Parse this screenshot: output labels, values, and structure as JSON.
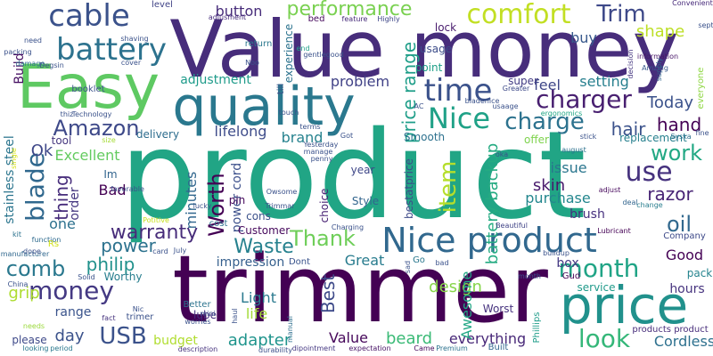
{
  "words": [
    {
      "text": "product",
      "color": "#21a585"
    },
    {
      "text": "trimmer",
      "color": "#440154"
    },
    {
      "text": "Value money",
      "color": "#472d7b"
    },
    {
      "text": "Easy",
      "color": "#5ec962"
    },
    {
      "text": "quality",
      "color": "#2a788e"
    },
    {
      "text": "price",
      "color": "#21918c"
    },
    {
      "text": "Nice product",
      "color": "#31688e"
    },
    {
      "text": "battery",
      "color": "#2c728e"
    },
    {
      "text": "cable",
      "color": "#3b528b"
    },
    {
      "text": "comfort",
      "color": "#c2df23"
    },
    {
      "text": "performance",
      "color": "#7ad151"
    },
    {
      "text": "time",
      "color": "#3b528b"
    },
    {
      "text": "Nice",
      "color": "#1fa187"
    },
    {
      "text": "charger",
      "color": "#481f70"
    },
    {
      "text": "charge",
      "color": "#2c728e"
    },
    {
      "text": "Trim",
      "color": "#3e4989"
    },
    {
      "text": "blade",
      "color": "#30688e"
    },
    {
      "text": "money",
      "color": "#443983"
    },
    {
      "text": "comb",
      "color": "#2a788e"
    },
    {
      "text": "use",
      "color": "#46327e"
    },
    {
      "text": "work",
      "color": "#22a884"
    },
    {
      "text": "month",
      "color": "#20a486"
    },
    {
      "text": "look",
      "color": "#35b779"
    },
    {
      "text": "Amazon",
      "color": "#3e4989"
    },
    {
      "text": "Worth",
      "color": "#440154"
    },
    {
      "text": "warranty",
      "color": "#472c7a"
    },
    {
      "text": "USB",
      "color": "#3b528b"
    },
    {
      "text": "philip",
      "color": "#21918c"
    },
    {
      "text": "item",
      "color": "#b5de2b"
    },
    {
      "text": "price range",
      "color": "#1f9e89"
    },
    {
      "text": "battery backup",
      "color": "#25ab82"
    },
    {
      "text": "hair",
      "color": "#3b528b"
    },
    {
      "text": "hand",
      "color": "#440154"
    },
    {
      "text": "oil",
      "color": "#31688e"
    },
    {
      "text": "razor",
      "color": "#482475"
    },
    {
      "text": "skin",
      "color": "#481a6c"
    },
    {
      "text": "power",
      "color": "#2c728e"
    },
    {
      "text": "Thank",
      "color": "#6ece58"
    },
    {
      "text": "Waste",
      "color": "#26818e"
    },
    {
      "text": "Best",
      "color": "#3e4a89"
    },
    {
      "text": "adapter",
      "color": "#1f948c"
    },
    {
      "text": "beard",
      "color": "#3aba76"
    },
    {
      "text": "everything",
      "color": "#482878"
    },
    {
      "text": "Cordless",
      "color": "#2d708e"
    },
    {
      "text": "hours",
      "color": "#46337e"
    },
    {
      "text": "Good",
      "color": "#440154"
    },
    {
      "text": "grip",
      "color": "#addc30"
    },
    {
      "text": "life",
      "color": "#a2da37"
    },
    {
      "text": "Light",
      "color": "#29798e"
    },
    {
      "text": "day",
      "color": "#3b528b"
    },
    {
      "text": "Value",
      "color": "#46075a"
    },
    {
      "text": "Great",
      "color": "#287c8e"
    },
    {
      "text": "design",
      "color": "#86d549"
    },
    {
      "text": "Excellent",
      "color": "#63cb5f"
    },
    {
      "text": "Build",
      "color": "#471063"
    },
    {
      "text": "button",
      "color": "#472c7a"
    },
    {
      "text": "lifelong",
      "color": "#3e4c8a"
    },
    {
      "text": "adjustment",
      "color": "#1e9b8a"
    },
    {
      "text": "problem",
      "color": "#414287"
    },
    {
      "text": "setting",
      "color": "#277f8e"
    },
    {
      "text": "feel",
      "color": "#3f4788"
    },
    {
      "text": "Today",
      "color": "#3b528b"
    },
    {
      "text": "shape",
      "color": "#bddf26"
    },
    {
      "text": "buy",
      "color": "#38598c"
    },
    {
      "text": "brand",
      "color": "#26828e"
    },
    {
      "text": "thing",
      "color": "#472d7b"
    },
    {
      "text": "Ok",
      "color": "#3f4889"
    },
    {
      "text": "minutes",
      "color": "#31678e"
    },
    {
      "text": "Bad",
      "color": "#440154"
    },
    {
      "text": "Im",
      "color": "#32648e"
    },
    {
      "text": "power cord",
      "color": "#3c508b"
    },
    {
      "text": "issue",
      "color": "#2a768e"
    },
    {
      "text": "purchase",
      "color": "#24878e"
    },
    {
      "text": "brush",
      "color": "#46307e"
    },
    {
      "text": "replacement",
      "color": "#27808e"
    },
    {
      "text": "Awesome",
      "color": "#22a785"
    },
    {
      "text": "one",
      "color": "#2d718e"
    },
    {
      "text": "order",
      "color": "#453781"
    },
    {
      "text": "stainless steel",
      "color": "#2b758e"
    },
    {
      "text": "box",
      "color": "#443983"
    },
    {
      "text": "impression",
      "color": "#355f8d"
    },
    {
      "text": "Customer",
      "color": "#46085c"
    },
    {
      "text": "range",
      "color": "#3a548c"
    },
    {
      "text": "lube",
      "color": "#46307e"
    },
    {
      "text": "budget",
      "color": "#b0dd2f"
    },
    {
      "text": "service",
      "color": "#1f9a8a"
    },
    {
      "text": "delivery",
      "color": "#2e6d8e"
    },
    {
      "text": "tool",
      "color": "#45377f"
    },
    {
      "text": "please",
      "color": "#3e4989"
    },
    {
      "text": "Worst",
      "color": "#46327e"
    },
    {
      "text": "experience",
      "color": "#2c738e"
    },
    {
      "text": "usage",
      "color": "#3d4d8a"
    },
    {
      "text": "point",
      "color": "#1fa088"
    },
    {
      "text": "super",
      "color": "#433d84"
    },
    {
      "text": "lock",
      "color": "#481b6d"
    },
    {
      "text": "return",
      "color": "#2a788e"
    },
    {
      "text": "level",
      "color": "#414487"
    },
    {
      "text": "Convenient",
      "color": "#472a7a"
    },
    {
      "text": "everyone",
      "color": "#8fd744"
    },
    {
      "text": "cost",
      "color": "#2d718e"
    },
    {
      "text": "pin",
      "color": "#46085c"
    },
    {
      "text": "Style",
      "color": "#32658e"
    },
    {
      "text": "year",
      "color": "#3f4788"
    },
    {
      "text": "cons",
      "color": "#3b518b"
    },
    {
      "text": "choice",
      "color": "#482173"
    },
    {
      "text": "bestatprice",
      "color": "#3e4a89"
    },
    {
      "text": "Smooth",
      "color": "#2d718e"
    },
    {
      "text": "offer",
      "color": "#7fd34e"
    },
    {
      "text": "Company",
      "color": "#3e4a89"
    },
    {
      "text": "Gud",
      "color": "#440154"
    },
    {
      "text": "pack",
      "color": "#25848e"
    },
    {
      "text": "Dont",
      "color": "#3a548c"
    },
    {
      "text": "Better",
      "color": "#2c738e"
    },
    {
      "text": "Worthy",
      "color": "#277e8e"
    },
    {
      "text": "products product",
      "color": "#472d7b"
    },
    {
      "text": "Built",
      "color": "#31668e"
    },
    {
      "text": "Phillips",
      "color": "#1e9c89"
    },
    {
      "text": "manufacturer",
      "color": "#31688e"
    },
    {
      "text": "function",
      "color": "#2f6b8e"
    },
    {
      "text": "Premium",
      "color": "#2c728e"
    },
    {
      "text": "Came",
      "color": "#46085c"
    },
    {
      "text": "durability",
      "color": "#3c4f8a"
    },
    {
      "text": "description",
      "color": "#46327e"
    },
    {
      "text": "manual",
      "color": "#2e6e8e"
    },
    {
      "text": "expectation",
      "color": "#481467"
    },
    {
      "text": "dipointment",
      "color": "#453882"
    },
    {
      "text": "mini",
      "color": "#3b528b"
    },
    {
      "text": "haul",
      "color": "#3b528b"
    },
    {
      "text": "trimer",
      "color": "#3b528b"
    },
    {
      "text": "Nic",
      "color": "#3b528b"
    },
    {
      "text": "fact",
      "color": "#46337e"
    },
    {
      "text": "needs",
      "color": "#9bd93c"
    },
    {
      "text": "Lubricant",
      "color": "#440154"
    },
    {
      "text": "Beautiful",
      "color": "#414487"
    },
    {
      "text": "change",
      "color": "#287d8e"
    },
    {
      "text": "adjust",
      "color": "#46085c"
    },
    {
      "text": "deal",
      "color": "#32658e"
    },
    {
      "text": "stick",
      "color": "#3b528b"
    },
    {
      "text": "august",
      "color": "#2c728e"
    },
    {
      "text": "Syska",
      "color": "#2d708e"
    },
    {
      "text": "ergonomics",
      "color": "#22a785"
    },
    {
      "text": "Greater",
      "color": "#3e4a89"
    },
    {
      "text": "supply",
      "color": "#32658e"
    },
    {
      "text": "information",
      "color": "#481769"
    },
    {
      "text": "Amzing",
      "color": "#38598c"
    },
    {
      "text": "decision",
      "color": "#453781"
    },
    {
      "text": "sept",
      "color": "#3b528b"
    },
    {
      "text": "Highly",
      "color": "#3f4788"
    },
    {
      "text": "feature",
      "color": "#472c7a"
    },
    {
      "text": "bed",
      "color": "#46085c"
    },
    {
      "text": "adjusment",
      "color": "#472d7b"
    },
    {
      "text": "shaving",
      "color": "#3b528b"
    },
    {
      "text": "packing",
      "color": "#3b528b"
    },
    {
      "text": "need",
      "color": "#3b528b"
    },
    {
      "text": "damage",
      "color": "#2d708e"
    },
    {
      "text": "Degsin",
      "color": "#3b528b"
    },
    {
      "text": "booklet",
      "color": "#3b528b"
    },
    {
      "text": "cover",
      "color": "#3b528b"
    },
    {
      "text": "Noo",
      "color": "#3b528b"
    },
    {
      "text": "gentlegood",
      "color": "#3b528b"
    },
    {
      "text": "end",
      "color": "#1fa088"
    },
    {
      "text": "thiz",
      "color": "#3b528b"
    },
    {
      "text": "Technology",
      "color": "#3b528b"
    },
    {
      "text": "size",
      "color": "#a5db36"
    },
    {
      "text": "single",
      "color": "#d8e219"
    },
    {
      "text": "favorable",
      "color": "#3b528b"
    },
    {
      "text": "Potitive",
      "color": "#c8e020"
    },
    {
      "text": "Rs",
      "color": "#d2e21b"
    },
    {
      "text": "kit",
      "color": "#2c728e"
    },
    {
      "text": "dope",
      "color": "#3b528b"
    },
    {
      "text": "card",
      "color": "#3b528b"
    },
    {
      "text": "July",
      "color": "#3b528b"
    },
    {
      "text": "Solid",
      "color": "#3b528b"
    },
    {
      "text": "China",
      "color": "#3b528b"
    },
    {
      "text": "looking",
      "color": "#2a788e"
    },
    {
      "text": "period",
      "color": "#2a788e"
    },
    {
      "text": "worries",
      "color": "#3b528b"
    },
    {
      "text": "Owsome",
      "color": "#3b528b"
    },
    {
      "text": "Trimmar",
      "color": "#3b528b"
    },
    {
      "text": "lucky",
      "color": "#3b528b"
    },
    {
      "text": "Yesterday",
      "color": "#3b528b"
    },
    {
      "text": "manage",
      "color": "#3b528b"
    },
    {
      "text": "penny",
      "color": "#3b528b"
    },
    {
      "text": "Got",
      "color": "#3b528b"
    },
    {
      "text": "terms",
      "color": "#3b528b"
    },
    {
      "text": "till",
      "color": "#3b528b"
    },
    {
      "text": "touch",
      "color": "#3b528b"
    },
    {
      "text": "Charging",
      "color": "#3b528b"
    },
    {
      "text": "oka",
      "color": "#3b528b"
    },
    {
      "text": "sad",
      "color": "#3b528b"
    },
    {
      "text": "Go",
      "color": "#2a788e"
    },
    {
      "text": "bad",
      "color": "#3b528b"
    },
    {
      "text": "buildup",
      "color": "#3b528b"
    },
    {
      "text": "month",
      "color": "#3b528b"
    },
    {
      "text": "AC",
      "color": "#3b528b"
    },
    {
      "text": "usaage",
      "color": "#3b528b"
    },
    {
      "text": "biadenice",
      "color": "#3b528b"
    },
    {
      "text": "fine",
      "color": "#3b528b"
    }
  ]
}
